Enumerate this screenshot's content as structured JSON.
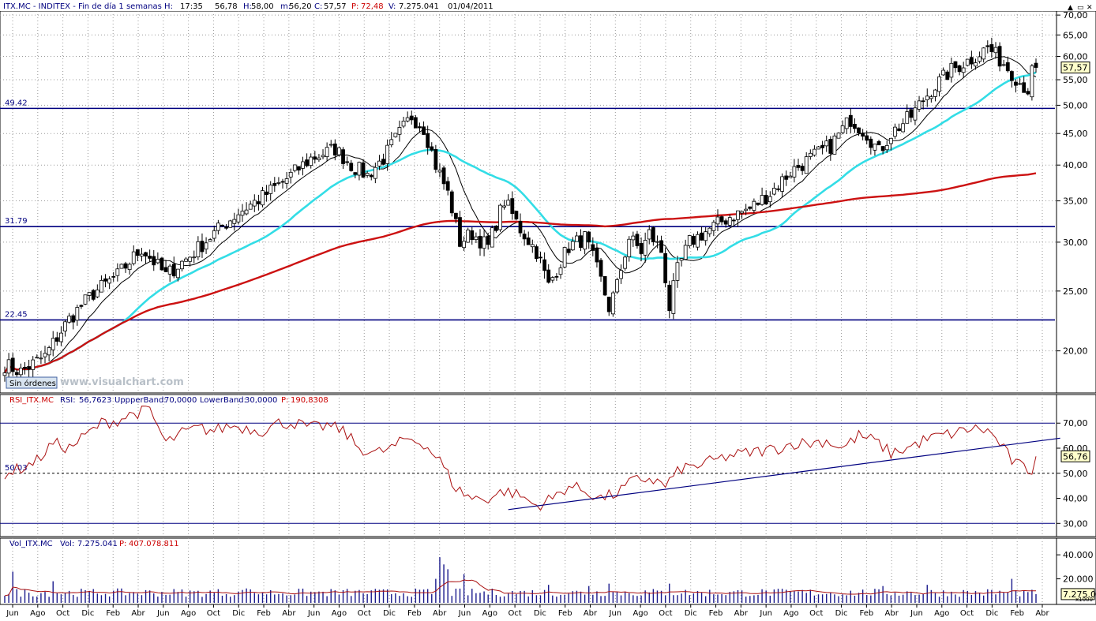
{
  "header": {
    "symbol": "ITX.MC - INDITEX - Fin de día 1 semanas  H:",
    "time": "17:35",
    "prev": "56,78",
    "h_label": "H:",
    "high": "58,00",
    "m_label": "m:",
    "low": "56,20",
    "c_label": "C:",
    "close": "57,57",
    "p_label": "P:",
    "p_value": "72,48",
    "v_label": "V:",
    "volume": "7.275.041",
    "date": "01/04/2011"
  },
  "badges": {
    "sin_ordenes": "Sin órdenes",
    "watermark": "www.visualchart.com"
  },
  "colors": {
    "price_bar": "#000000",
    "ma_short": "#000000",
    "ma_mid": "#33dde6",
    "ma_long": "#cc1111",
    "hline": "#000080",
    "rsi": "#aa1111",
    "volume_bar": "#1a1a8c",
    "volume_avg": "#aa1111",
    "header_label": "#000080",
    "header_value": "#000000",
    "header_red": "#cc0000"
  },
  "chart_data": [
    {
      "type": "candlestick",
      "title": "ITX.MC - INDITEX",
      "scale": "log",
      "ylim": [
        17.5,
        69
      ],
      "y_ticks": [
        "20,00",
        "25,00",
        "30,00",
        "35,00",
        "40,00",
        "45,00",
        "50,00",
        "55,00",
        "60,00",
        "65,00",
        "70,00"
      ],
      "y_tick_values": [
        20,
        25,
        30,
        35,
        40,
        45,
        50,
        55,
        60,
        65,
        70
      ],
      "last_price_label": "57,57",
      "hlines": [
        {
          "label": "49.42",
          "value": 49.42
        },
        {
          "label": "31.79",
          "value": 31.79
        },
        {
          "label": "22.45",
          "value": 22.45
        }
      ],
      "x_labels": [
        "Jun",
        "Ago",
        "Oct",
        "Dic",
        "Feb",
        "Abr",
        "Jun",
        "Ago",
        "Oct",
        "Dic",
        "Feb",
        "Abr",
        "Jun",
        "Ago",
        "Oct",
        "Dic",
        "Feb",
        "Abr",
        "Jun",
        "Ago",
        "Oct",
        "Dic",
        "Feb",
        "Abr",
        "Jun",
        "Ago",
        "Oct",
        "Dic",
        "Feb",
        "Abr",
        "Jun",
        "Ago",
        "Oct",
        "Dic",
        "Feb",
        "Abr",
        "Jun",
        "Ago",
        "Oct",
        "Dic",
        "Feb",
        "Abr"
      ],
      "anchors": [
        [
          0,
          19.0
        ],
        [
          4,
          18.5
        ],
        [
          10,
          19.6
        ],
        [
          16,
          22.5
        ],
        [
          22,
          24.8
        ],
        [
          28,
          26.5
        ],
        [
          34,
          29.3
        ],
        [
          40,
          26.5
        ],
        [
          46,
          28.5
        ],
        [
          52,
          31.0
        ],
        [
          58,
          33.5
        ],
        [
          64,
          35.5
        ],
        [
          70,
          38.0
        ],
        [
          76,
          41.0
        ],
        [
          82,
          42.5
        ],
        [
          86,
          40.0
        ],
        [
          90,
          38.5
        ],
        [
          94,
          41.0
        ],
        [
          98,
          45.0
        ],
        [
          101,
          48.0
        ],
        [
          104,
          46.0
        ],
        [
          107,
          40.0
        ],
        [
          110,
          36.0
        ],
        [
          113,
          30.0
        ],
        [
          116,
          31.0
        ],
        [
          120,
          29.5
        ],
        [
          124,
          35.0
        ],
        [
          128,
          31.5
        ],
        [
          132,
          29.0
        ],
        [
          135,
          25.5
        ],
        [
          140,
          29.5
        ],
        [
          144,
          30.5
        ],
        [
          148,
          26.0
        ],
        [
          150,
          23.5
        ],
        [
          152,
          25.5
        ],
        [
          155,
          30.5
        ],
        [
          158,
          29.0
        ],
        [
          160,
          31.0
        ],
        [
          163,
          29.0
        ],
        [
          165,
          23.5
        ],
        [
          167,
          27.0
        ],
        [
          170,
          30.0
        ],
        [
          175,
          31.5
        ],
        [
          180,
          33.0
        ],
        [
          185,
          34.0
        ],
        [
          190,
          36.0
        ],
        [
          195,
          39.0
        ],
        [
          200,
          41.0
        ],
        [
          205,
          43.0
        ],
        [
          210,
          47.5
        ],
        [
          214,
          45.0
        ],
        [
          217,
          42.0
        ],
        [
          220,
          45.0
        ],
        [
          225,
          48.0
        ],
        [
          230,
          53.0
        ],
        [
          235,
          57.0
        ],
        [
          240,
          59.5
        ],
        [
          244,
          62.0
        ],
        [
          248,
          58.5
        ],
        [
          252,
          54.5
        ],
        [
          254,
          53.0
        ],
        [
          255,
          56.5
        ],
        [
          256,
          57.57
        ]
      ],
      "series": [
        {
          "name": "MA short",
          "period": 10
        },
        {
          "name": "MA mid",
          "period": 30
        },
        {
          "name": "MA long",
          "period": 150
        }
      ]
    },
    {
      "type": "line",
      "title": "RSI_ITX.MC",
      "labels": {
        "name": "RSI_ITX.MC",
        "rsi_label": "RSI:",
        "rsi_value": "56,7623",
        "upper_label": "UppperBand:",
        "upper_value": "70,0000",
        "lower_label": "LowerBand:",
        "lower_value": "30,0000",
        "p_label": "P:",
        "p_value": "190,8308"
      },
      "ylim": [
        26,
        77
      ],
      "y_ticks": [
        "30,00",
        "40,00",
        "50,00",
        "60,00",
        "70,00"
      ],
      "y_tick_values": [
        30,
        40,
        50,
        60,
        70
      ],
      "upper_band": 70,
      "lower_band": 30,
      "midline": 50,
      "mid_label": "50.03",
      "last_label": "56,76",
      "anchors": [
        [
          0,
          50
        ],
        [
          4,
          52
        ],
        [
          8,
          55
        ],
        [
          12,
          62
        ],
        [
          16,
          60
        ],
        [
          20,
          65
        ],
        [
          24,
          70
        ],
        [
          28,
          71
        ],
        [
          32,
          74
        ],
        [
          36,
          75
        ],
        [
          40,
          62
        ],
        [
          44,
          66
        ],
        [
          48,
          68
        ],
        [
          52,
          67
        ],
        [
          56,
          69
        ],
        [
          60,
          68
        ],
        [
          64,
          67
        ],
        [
          68,
          70
        ],
        [
          72,
          70
        ],
        [
          76,
          68
        ],
        [
          80,
          69
        ],
        [
          84,
          67
        ],
        [
          88,
          60
        ],
        [
          92,
          58
        ],
        [
          96,
          60
        ],
        [
          100,
          64
        ],
        [
          104,
          62
        ],
        [
          108,
          55
        ],
        [
          112,
          44
        ],
        [
          116,
          40
        ],
        [
          120,
          40
        ],
        [
          124,
          43
        ],
        [
          128,
          41
        ],
        [
          132,
          37
        ],
        [
          136,
          40
        ],
        [
          140,
          45
        ],
        [
          144,
          43
        ],
        [
          148,
          40
        ],
        [
          152,
          42
        ],
        [
          156,
          47
        ],
        [
          160,
          48
        ],
        [
          164,
          45
        ],
        [
          168,
          52
        ],
        [
          172,
          53
        ],
        [
          176,
          55
        ],
        [
          180,
          57
        ],
        [
          184,
          58
        ],
        [
          188,
          59
        ],
        [
          192,
          60
        ],
        [
          196,
          62
        ],
        [
          200,
          62
        ],
        [
          204,
          63
        ],
        [
          208,
          60
        ],
        [
          212,
          65
        ],
        [
          216,
          63
        ],
        [
          220,
          58
        ],
        [
          224,
          60
        ],
        [
          228,
          63
        ],
        [
          232,
          65
        ],
        [
          236,
          66
        ],
        [
          240,
          68
        ],
        [
          244,
          67
        ],
        [
          247,
          62
        ],
        [
          250,
          55
        ],
        [
          253,
          52
        ],
        [
          255,
          51
        ],
        [
          256,
          56.76
        ]
      ],
      "trendlines": [
        {
          "from": [
            125,
            35.5
          ],
          "to": [
            262,
            64
          ]
        }
      ]
    },
    {
      "type": "bar",
      "title": "Vol_ITX.MC",
      "labels": {
        "name": "Vol_ITX.MC",
        "vol_label": "Vol:",
        "vol_value": "7.275.041",
        "p_label": "P:",
        "p_value": "407.078.811"
      },
      "units": "x1000",
      "ylim": [
        0,
        46000
      ],
      "y_ticks": [
        "20.000",
        "40.000"
      ],
      "y_tick_values": [
        20000,
        40000
      ],
      "last_label": "7.275.0",
      "last_value": 7275,
      "spikes": [
        [
          2,
          26000
        ],
        [
          12,
          18000
        ],
        [
          60,
          12000
        ],
        [
          107,
          20000
        ],
        [
          108,
          38000
        ],
        [
          109,
          32000
        ],
        [
          110,
          28000
        ],
        [
          114,
          24000
        ],
        [
          135,
          15000
        ],
        [
          145,
          14000
        ],
        [
          150,
          16000
        ],
        [
          165,
          16000
        ],
        [
          218,
          14000
        ],
        [
          229,
          15000
        ],
        [
          250,
          20000
        ],
        [
          254,
          9000
        ]
      ],
      "base_volume": 10000
    }
  ]
}
